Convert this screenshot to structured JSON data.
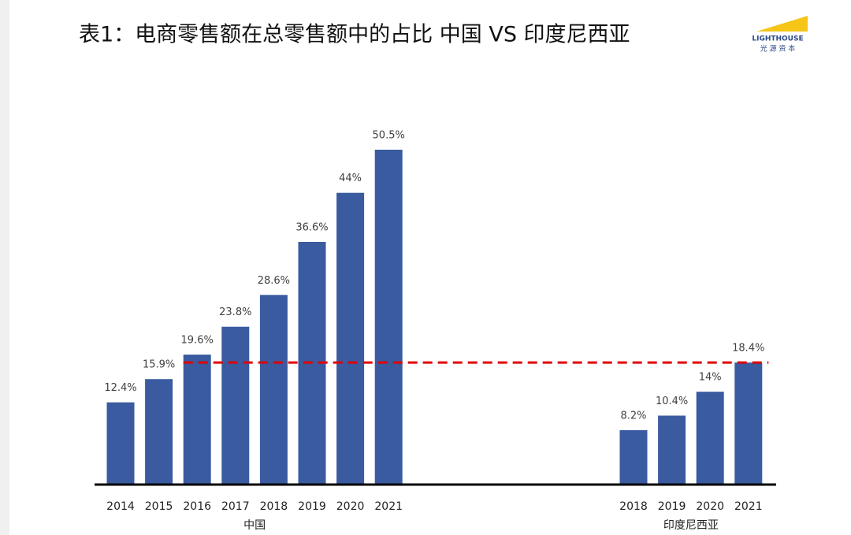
{
  "chart_data": {
    "type": "bar",
    "title": "表1：电商零售额在总零售额中的占比 中国 VS 印度尼西亚",
    "logo": {
      "name": "LIGHTHOUSE",
      "subtitle": "光 源 资 本"
    },
    "color": "#3a5ba0",
    "reference_line_color": "#e00000",
    "groups": [
      {
        "name": "中国",
        "categories": [
          "2014",
          "2015",
          "2016",
          "2017",
          "2018",
          "2019",
          "2020",
          "2021"
        ],
        "values": [
          12.4,
          15.9,
          19.6,
          23.8,
          28.6,
          36.6,
          44,
          50.5
        ],
        "value_labels": [
          "12.4%",
          "15.9%",
          "19.6%",
          "23.8%",
          "28.6%",
          "36.6%",
          "44%",
          "50.5%"
        ]
      },
      {
        "name": "印度尼西亚",
        "categories": [
          "2018",
          "2019",
          "2020",
          "2021"
        ],
        "values": [
          8.2,
          10.4,
          14,
          18.4
        ],
        "value_labels": [
          "8.2%",
          "10.4%",
          "14%",
          "18.4%"
        ]
      }
    ]
  }
}
